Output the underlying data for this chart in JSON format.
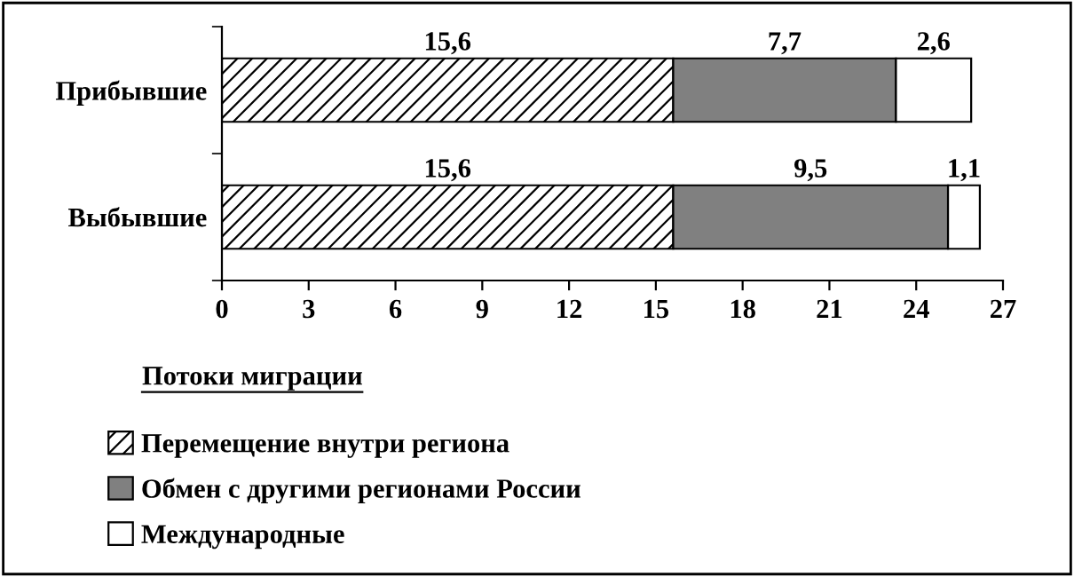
{
  "chart_data": {
    "type": "bar",
    "orientation": "horizontal",
    "stacked": true,
    "categories": [
      "Прибывшие",
      "Выбывшие"
    ],
    "xlabel": "Потоки миграции",
    "xlim": [
      0,
      27
    ],
    "xticks": [
      0,
      3,
      6,
      9,
      12,
      15,
      18,
      21,
      24,
      27
    ],
    "legend": "bottom",
    "grid": false,
    "series": [
      {
        "name": "Перемещение внутри региона",
        "color": "#000000",
        "values": [
          15.6,
          15.6
        ],
        "value_labels": [
          "15,6",
          "15,6"
        ]
      },
      {
        "name": "Обмен с другими регионами России",
        "color": "#808080",
        "values": [
          7.7,
          9.5
        ],
        "value_labels": [
          "7,7",
          "9,5"
        ]
      },
      {
        "name": "Международные",
        "color": "#ffffff",
        "values": [
          2.6,
          1.1
        ],
        "value_labels": [
          "2,6",
          "1,1"
        ]
      }
    ]
  }
}
